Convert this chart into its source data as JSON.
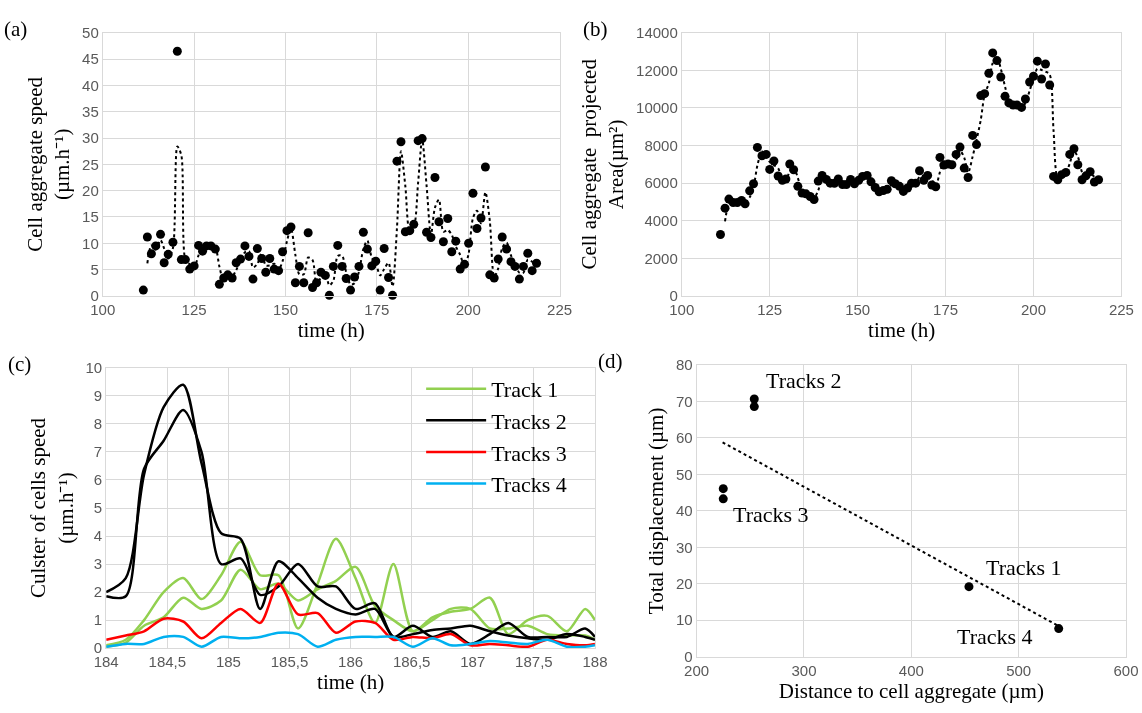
{
  "chart_data": [
    {
      "type": "scatter",
      "title": "(a)",
      "xlabel": "time (h)",
      "ylabel": "Cell aggregate speed\n(µm.h⁻¹)",
      "xlim": [
        100,
        225
      ],
      "xticks": [
        100,
        125,
        150,
        175,
        200,
        225
      ],
      "ylim": [
        0,
        50
      ],
      "yticks": [
        0,
        5,
        10,
        15,
        20,
        25,
        30,
        35,
        40,
        45,
        50
      ],
      "grid": true,
      "series": [
        {
          "type": "scatter",
          "marker": "circle",
          "color": "#000000",
          "x": [
            111.1,
            112.2,
            113.3,
            114.5,
            115.8,
            116.8,
            117.9,
            119.2,
            120.4,
            121.5,
            122.6,
            123.8,
            125.0,
            126.2,
            127.3,
            128.4,
            129.6,
            130.8,
            131.9,
            133.1,
            134.2,
            135.4,
            136.5,
            137.7,
            138.9,
            140.0,
            141.1,
            142.3,
            143.5,
            144.6,
            145.7,
            146.9,
            148.1,
            149.2,
            150.4,
            151.5,
            152.7,
            153.8,
            155.0,
            156.2,
            157.4,
            158.5,
            159.7,
            160.9,
            162.0,
            163.1,
            164.3,
            165.5,
            166.6,
            167.8,
            168.9,
            170.1,
            171.3,
            172.4,
            173.6,
            174.7,
            175.9,
            177.0,
            178.2,
            179.3,
            180.5,
            181.6,
            182.8,
            184.0,
            185.1,
            186.3,
            187.4,
            188.6,
            189.8,
            190.9,
            192.0,
            193.2,
            194.4,
            195.5,
            196.6,
            197.8,
            199.0,
            200.1,
            201.3,
            202.4,
            203.5,
            204.7,
            205.9,
            207.1,
            208.2,
            209.3,
            210.5,
            211.7,
            212.8,
            214.0,
            215.1,
            216.3,
            217.5,
            218.7
          ],
          "values": [
            1.1,
            11.2,
            8.0,
            9.5,
            11.7,
            6.3,
            7.9,
            10.2,
            46.5,
            6.9,
            6.9,
            5.1,
            5.7,
            9.6,
            8.5,
            9.5,
            9.5,
            8.9,
            2.2,
            3.4,
            4.0,
            3.4,
            6.3,
            7.0,
            9.5,
            7.5,
            3.2,
            9.0,
            7.1,
            4.5,
            7.1,
            5.1,
            4.8,
            8.4,
            12.4,
            13.1,
            2.5,
            5.6,
            2.5,
            12.0,
            1.6,
            2.5,
            4.5,
            3.9,
            0.1,
            5.6,
            9.6,
            5.6,
            3.3,
            1.1,
            3.6,
            5.6,
            12.1,
            8.9,
            5.7,
            6.6,
            1.1,
            9.0,
            3.5,
            0.1,
            25.6,
            29.3,
            12.2,
            12.4,
            13.6,
            29.5,
            29.9,
            12.1,
            11.1,
            22.5,
            14.1,
            10.3,
            14.7,
            8.4,
            10.4,
            5.1,
            6.0,
            10.0,
            19.5,
            12.8,
            14.8,
            24.5,
            4.0,
            3.4,
            7.0,
            11.2,
            8.9,
            6.5,
            5.6,
            3.2,
            5.6,
            8.1,
            4.8,
            6.2
          ]
        },
        {
          "type": "line",
          "marker": "none",
          "line_style": "dotted",
          "color": "#000000",
          "x": [
            112.2,
            113.3,
            114.5,
            115.8,
            116.8,
            117.9,
            119.2,
            120.4,
            121.5,
            122.6,
            123.8,
            125.0,
            126.2,
            127.3,
            128.4,
            129.6,
            130.8,
            131.9,
            133.1,
            134.2,
            135.4,
            136.5,
            137.7,
            138.9,
            140.0,
            141.1,
            142.3,
            143.5,
            144.6,
            145.7,
            146.9,
            148.1,
            149.2,
            150.4,
            151.5,
            152.7,
            153.8,
            155.0,
            156.2,
            157.4,
            158.5,
            159.7,
            160.9,
            162.0,
            163.1,
            164.3,
            165.5,
            166.6,
            167.8,
            168.9,
            170.1,
            171.3,
            172.4,
            173.6,
            174.7,
            175.9,
            177.0,
            178.2,
            179.3,
            180.5,
            181.6,
            182.8,
            184.0,
            185.1,
            186.3,
            187.4,
            188.6,
            189.8,
            190.9,
            192.0,
            193.2,
            194.4,
            195.5,
            196.6,
            197.8,
            199.0,
            200.1,
            201.3,
            202.4,
            203.5,
            204.7,
            205.9,
            207.1,
            208.2,
            209.3,
            210.5,
            211.7,
            212.8,
            214.0,
            215.1,
            216.3,
            217.5,
            218.7
          ],
          "values": [
            6.2,
            9.6,
            8.8,
            10.6,
            9.0,
            7.1,
            9.1,
            28.4,
            26.7,
            6.9,
            6.0,
            5.4,
            7.7,
            9.1,
            9.0,
            9.5,
            9.2,
            5.6,
            2.8,
            3.7,
            3.7,
            4.9,
            6.7,
            8.3,
            8.5,
            5.4,
            6.1,
            8.1,
            5.8,
            5.8,
            6.1,
            5.0,
            6.6,
            10.4,
            12.8,
            7.8,
            4.1,
            4.1,
            7.3,
            6.8,
            2.1,
            3.5,
            4.2,
            2.0,
            2.9,
            7.6,
            7.6,
            4.5,
            2.2,
            2.4,
            4.6,
            8.9,
            10.5,
            7.3,
            6.2,
            3.9,
            5.1,
            6.3,
            1.8,
            12.9,
            27.5,
            20.8,
            12.3,
            13.0,
            21.6,
            29.7,
            21.0,
            11.6,
            16.8,
            18.3,
            12.2,
            12.5,
            11.6,
            9.4,
            7.8,
            5.6,
            8.0,
            14.8,
            16.2,
            13.8,
            19.7,
            14.3,
            3.7,
            5.2,
            9.1,
            10.1,
            7.7,
            6.1,
            4.4,
            4.4,
            6.9,
            6.5,
            5.5
          ]
        }
      ]
    },
    {
      "type": "scatter",
      "title": "(b)",
      "xlabel": "time (h)",
      "ylabel": "Cell aggregate  projected\nArea(µm²)",
      "xlim": [
        100,
        225
      ],
      "xticks": [
        100,
        125,
        150,
        175,
        200,
        225
      ],
      "ylim": [
        0,
        14000
      ],
      "yticks": [
        0,
        2000,
        4000,
        6000,
        8000,
        10000,
        12000,
        14000
      ],
      "grid": true,
      "series": [
        {
          "type": "scatter",
          "marker": "circle",
          "color": "#000000",
          "x": [
            111.0,
            112.3,
            113.4,
            114.6,
            115.8,
            117.0,
            118.0,
            119.3,
            120.4,
            121.5,
            122.8,
            124.0,
            125.0,
            126.2,
            127.4,
            128.6,
            129.6,
            130.7,
            131.8,
            133.0,
            134.2,
            135.3,
            136.5,
            137.6,
            138.8,
            139.9,
            141.1,
            142.2,
            143.4,
            144.5,
            145.7,
            146.8,
            148.0,
            149.1,
            150.3,
            151.4,
            152.7,
            153.8,
            155.0,
            156.1,
            157.3,
            158.4,
            159.6,
            160.7,
            161.9,
            163.0,
            164.2,
            165.3,
            166.5,
            167.6,
            168.8,
            169.9,
            171.1,
            172.2,
            173.4,
            174.5,
            175.7,
            176.8,
            178.0,
            179.1,
            180.3,
            181.4,
            182.7,
            183.8,
            185.0,
            186.1,
            187.3,
            188.4,
            189.6,
            190.7,
            191.9,
            193.0,
            194.2,
            195.3,
            196.6,
            197.7,
            198.9,
            200.0,
            201.1,
            202.3,
            203.4,
            204.6,
            205.7,
            206.9,
            208.0,
            209.2,
            210.3,
            211.5,
            212.6,
            213.8,
            214.9,
            216.1,
            217.3,
            218.5
          ],
          "values": [
            3270,
            4670,
            5150,
            4970,
            4970,
            5080,
            4900,
            5590,
            5970,
            7900,
            7460,
            7530,
            6730,
            7180,
            6380,
            6150,
            6220,
            7020,
            6710,
            5830,
            5470,
            5430,
            5290,
            5130,
            6110,
            6410,
            6200,
            6000,
            5990,
            6220,
            5930,
            5930,
            6200,
            5970,
            6150,
            6360,
            6410,
            6070,
            5770,
            5540,
            5610,
            5670,
            6130,
            5970,
            5830,
            5560,
            5740,
            5990,
            6000,
            6660,
            6150,
            6410,
            5900,
            5810,
            7370,
            6960,
            7020,
            6980,
            7530,
            7920,
            6800,
            6300,
            8540,
            8050,
            10660,
            10760,
            11850,
            12930,
            12520,
            11650,
            10620,
            10270,
            10160,
            10160,
            10030,
            10480,
            11380,
            11690,
            12490,
            11540,
            12340,
            11220,
            6360,
            6180,
            6450,
            6570,
            7530,
            7830,
            6980,
            6180,
            6390,
            6610,
            6060,
            6180
          ]
        },
        {
          "type": "line",
          "marker": "none",
          "line_style": "dotted",
          "color": "#000000",
          "x": [
            112.3,
            113.4,
            114.6,
            115.8,
            117.0,
            118.0,
            119.3,
            120.4,
            121.5,
            122.8,
            124.0,
            125.0,
            126.2,
            127.4,
            128.6,
            129.6,
            130.7,
            131.8,
            133.0,
            134.2,
            135.3,
            136.5,
            137.6,
            138.8,
            139.9,
            141.1,
            142.2,
            143.4,
            144.5,
            145.7,
            146.8,
            148.0,
            149.1,
            150.3,
            151.4,
            152.7,
            153.8,
            155.0,
            156.1,
            157.3,
            158.4,
            159.6,
            160.7,
            161.9,
            163.0,
            164.2,
            165.3,
            166.5,
            167.6,
            168.8,
            169.9,
            171.1,
            172.2,
            173.4,
            174.5,
            175.7,
            176.8,
            178.0,
            179.1,
            180.3,
            181.4,
            182.7,
            183.8,
            185.0,
            186.1,
            187.3,
            188.4,
            189.6,
            190.7,
            191.9,
            193.0,
            194.2,
            195.3,
            196.6,
            197.7,
            198.9,
            200.0,
            201.1,
            202.3,
            203.4,
            204.6,
            205.7,
            206.9,
            208.0,
            209.2,
            210.3,
            211.5,
            212.6,
            213.8,
            214.9,
            216.1,
            217.3,
            218.5
          ],
          "values": [
            3970,
            4910,
            5060,
            4970,
            5030,
            4990,
            5250,
            5780,
            6940,
            7680,
            7500,
            7130,
            6960,
            6780,
            6270,
            6190,
            6620,
            6870,
            6270,
            5650,
            5450,
            5360,
            5210,
            5620,
            6260,
            6310,
            6100,
            6000,
            6110,
            6080,
            5930,
            6070,
            6090,
            6060,
            6260,
            6390,
            6240,
            5920,
            5660,
            5580,
            5640,
            5900,
            6050,
            5900,
            5700,
            5650,
            5870,
            6000,
            6330,
            6410,
            6280,
            6160,
            5860,
            6590,
            7170,
            6990,
            7000,
            7260,
            7730,
            7360,
            6550,
            7420,
            8300,
            9360,
            10710,
            11310,
            12390,
            12730,
            12090,
            11140,
            10450,
            10220,
            10160,
            10100,
            10260,
            10930,
            11540,
            12090,
            12020,
            11940,
            11780,
            8790,
            6270,
            6320,
            6510,
            7050,
            7680,
            7410,
            6580,
            6290,
            6500,
            6340,
            6120
          ]
        }
      ]
    },
    {
      "type": "line",
      "title": "(c)",
      "xlabel": "time (h)",
      "ylabel": "Culster of cells speed\n(µm.h⁻¹)",
      "xlim": [
        184,
        188
      ],
      "xticks": [
        184,
        {
          "value": 184.5,
          "label": "184,5"
        },
        185,
        {
          "value": 185.5,
          "label": "185,5"
        },
        186,
        {
          "value": 186.5,
          "label": "186,5"
        },
        187,
        {
          "value": 187.5,
          "label": "187,5"
        },
        188
      ],
      "ylim": [
        0,
        10
      ],
      "yticks": [
        0,
        1,
        2,
        3,
        4,
        5,
        6,
        7,
        8,
        9,
        10
      ],
      "grid": true,
      "legend": "top right",
      "line_style": "solid",
      "marker": "none",
      "x": [
        184.0,
        184.16,
        184.31,
        184.47,
        184.63,
        184.78,
        184.94,
        185.1,
        185.26,
        185.41,
        185.57,
        185.73,
        185.88,
        186.04,
        186.2,
        186.35,
        186.51,
        186.67,
        186.82,
        186.98,
        187.14,
        187.29,
        187.45,
        187.61,
        187.77,
        187.92,
        188.0
      ],
      "series": [
        {
          "name": "Track 1",
          "color": "#92d050",
          "values": [
            0.1,
            0.3,
            1.0,
            2.0,
            2.5,
            1.75,
            2.6,
            3.8,
            2.6,
            2.6,
            0.7,
            2.3,
            3.9,
            2.5,
            0.9,
            3.0,
            0.6,
            1.1,
            1.3,
            1.4,
            1.8,
            0.5,
            1.0,
            1.15,
            0.6,
            1.4,
            1.0
          ]
        },
        {
          "color": "#92d050",
          "values": [
            0.05,
            0.2,
            0.8,
            1.1,
            1.8,
            1.4,
            1.7,
            2.8,
            2.1,
            2.3,
            1.7,
            2.1,
            2.4,
            2.9,
            1.5,
            1.0,
            0.6,
            1.0,
            1.4,
            1.4,
            0.7,
            0.7,
            0.8,
            0.5,
            0.45,
            0.45,
            0.3
          ]
        },
        {
          "name": "Tracks 2",
          "color": "#000000",
          "values": [
            2.0,
            2.5,
            6.2,
            8.6,
            9.4,
            6.6,
            4.1,
            3.9,
            1.4,
            3.1,
            2.5,
            1.8,
            1.4,
            1.2,
            1.4,
            0.4,
            0.5,
            0.65,
            0.7,
            0.8,
            0.6,
            0.45,
            0.35,
            0.3,
            0.5,
            0.4,
            0.3
          ]
        },
        {
          "color": "#000000",
          "values": [
            1.85,
            1.85,
            6.4,
            7.4,
            8.5,
            7.0,
            3.0,
            3.2,
            1.9,
            2.2,
            3.0,
            2.2,
            2.2,
            1.4,
            1.6,
            0.4,
            0.8,
            0.4,
            0.6,
            0.15,
            0.5,
            0.9,
            0.4,
            0.4,
            0.4,
            0.7,
            0.4
          ]
        },
        {
          "name": "Tracks 3",
          "color": "#ff0000",
          "values": [
            0.3,
            0.45,
            0.6,
            1.05,
            0.95,
            0.35,
            0.9,
            1.4,
            0.9,
            2.3,
            1.2,
            1.25,
            0.55,
            0.95,
            0.9,
            0.3,
            0.4,
            0.35,
            0.5,
            0.1,
            0.15,
            0.1,
            0.05,
            0.3,
            0.15,
            0.1,
            0.15
          ]
        },
        {
          "name": "Tracks 4",
          "color": "#00b0f0",
          "values": [
            0.05,
            0.15,
            0.15,
            0.4,
            0.4,
            0.05,
            0.4,
            0.35,
            0.4,
            0.55,
            0.5,
            0.05,
            0.3,
            0.4,
            0.4,
            0.4,
            0.05,
            0.35,
            0.1,
            0.15,
            0.25,
            0.2,
            0.15,
            0.3,
            0.05,
            0.05,
            0.1
          ]
        }
      ]
    },
    {
      "type": "scatter",
      "title": "(d)",
      "xlabel": "Distance to cell aggregate (µm)",
      "ylabel": "Total displacement (µm)",
      "xlim": [
        200,
        600
      ],
      "xticks": [
        200,
        300,
        400,
        500,
        600
      ],
      "ylim": [
        0,
        80
      ],
      "yticks": [
        0,
        10,
        20,
        30,
        40,
        50,
        60,
        70,
        80
      ],
      "grid": true,
      "series": [
        {
          "type": "scatter",
          "marker": "circle",
          "color": "#000000",
          "x": [
            253.7,
            253.7,
            224.8,
            224.8,
            453.7,
            537.3
          ],
          "values": [
            70.7,
            68.6,
            46.1,
            43.3,
            19.2,
            7.7
          ]
        },
        {
          "type": "line",
          "marker": "none",
          "line_style": "dotted",
          "color": "#000000",
          "x": [
            224.2,
            537.3
          ],
          "values": [
            58.8,
            8.4
          ]
        }
      ],
      "annotations": [
        {
          "text": "Tracks 2",
          "x": 253.7,
          "y": 70.7
        },
        {
          "text": "Tracks 3",
          "x": 224.8,
          "y": 43.3
        },
        {
          "text": "Tracks 1",
          "x": 453.7,
          "y": 19.2
        },
        {
          "text": "Tracks 4",
          "x": 537.3,
          "y": 7.7
        }
      ]
    }
  ]
}
